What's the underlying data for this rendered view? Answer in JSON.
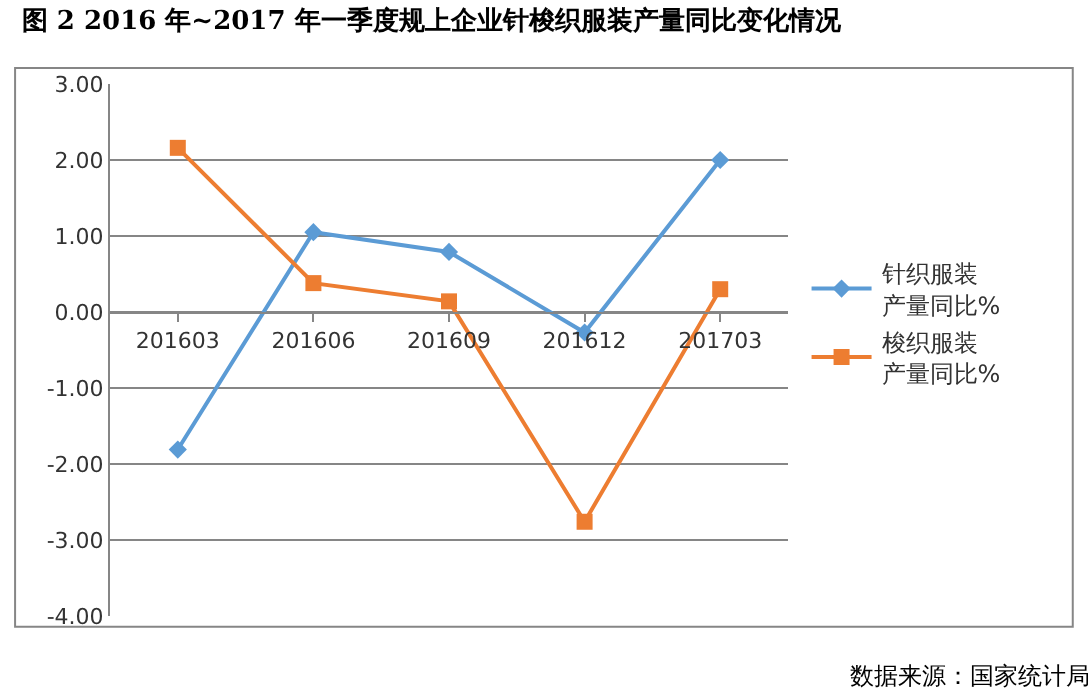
{
  "chart_data": {
    "type": "line",
    "title": "图 2 2016 年~2017 年一季度规上企业针梭织服装产量同比变化情况",
    "categories": [
      "201603",
      "201606",
      "201609",
      "201612",
      "201703"
    ],
    "series": [
      {
        "name": "针织服装产量同比%",
        "color": "#5b9bd5",
        "marker": "diamond",
        "values": [
          -1.81,
          1.05,
          0.79,
          -0.27,
          2.0
        ]
      },
      {
        "name": "梭织服装产量同比%",
        "color": "#ed7d31",
        "marker": "square",
        "values": [
          2.16,
          0.38,
          0.14,
          -2.76,
          0.3
        ]
      }
    ],
    "ylim": [
      -4,
      3
    ],
    "yticks": [
      {
        "value": -4,
        "label": "-4.00"
      },
      {
        "value": -3,
        "label": "-3.00"
      },
      {
        "value": -2,
        "label": "-2.00"
      },
      {
        "value": -1,
        "label": "-1.00"
      },
      {
        "value": 0,
        "label": "0.00"
      },
      {
        "value": 1,
        "label": "1.00"
      },
      {
        "value": 2,
        "label": "2.00"
      },
      {
        "value": 3,
        "label": "3.00"
      }
    ],
    "grid": "y",
    "legend": "right",
    "line_style": "solid",
    "annotations": [
      "数据来源：国家统计局"
    ]
  }
}
